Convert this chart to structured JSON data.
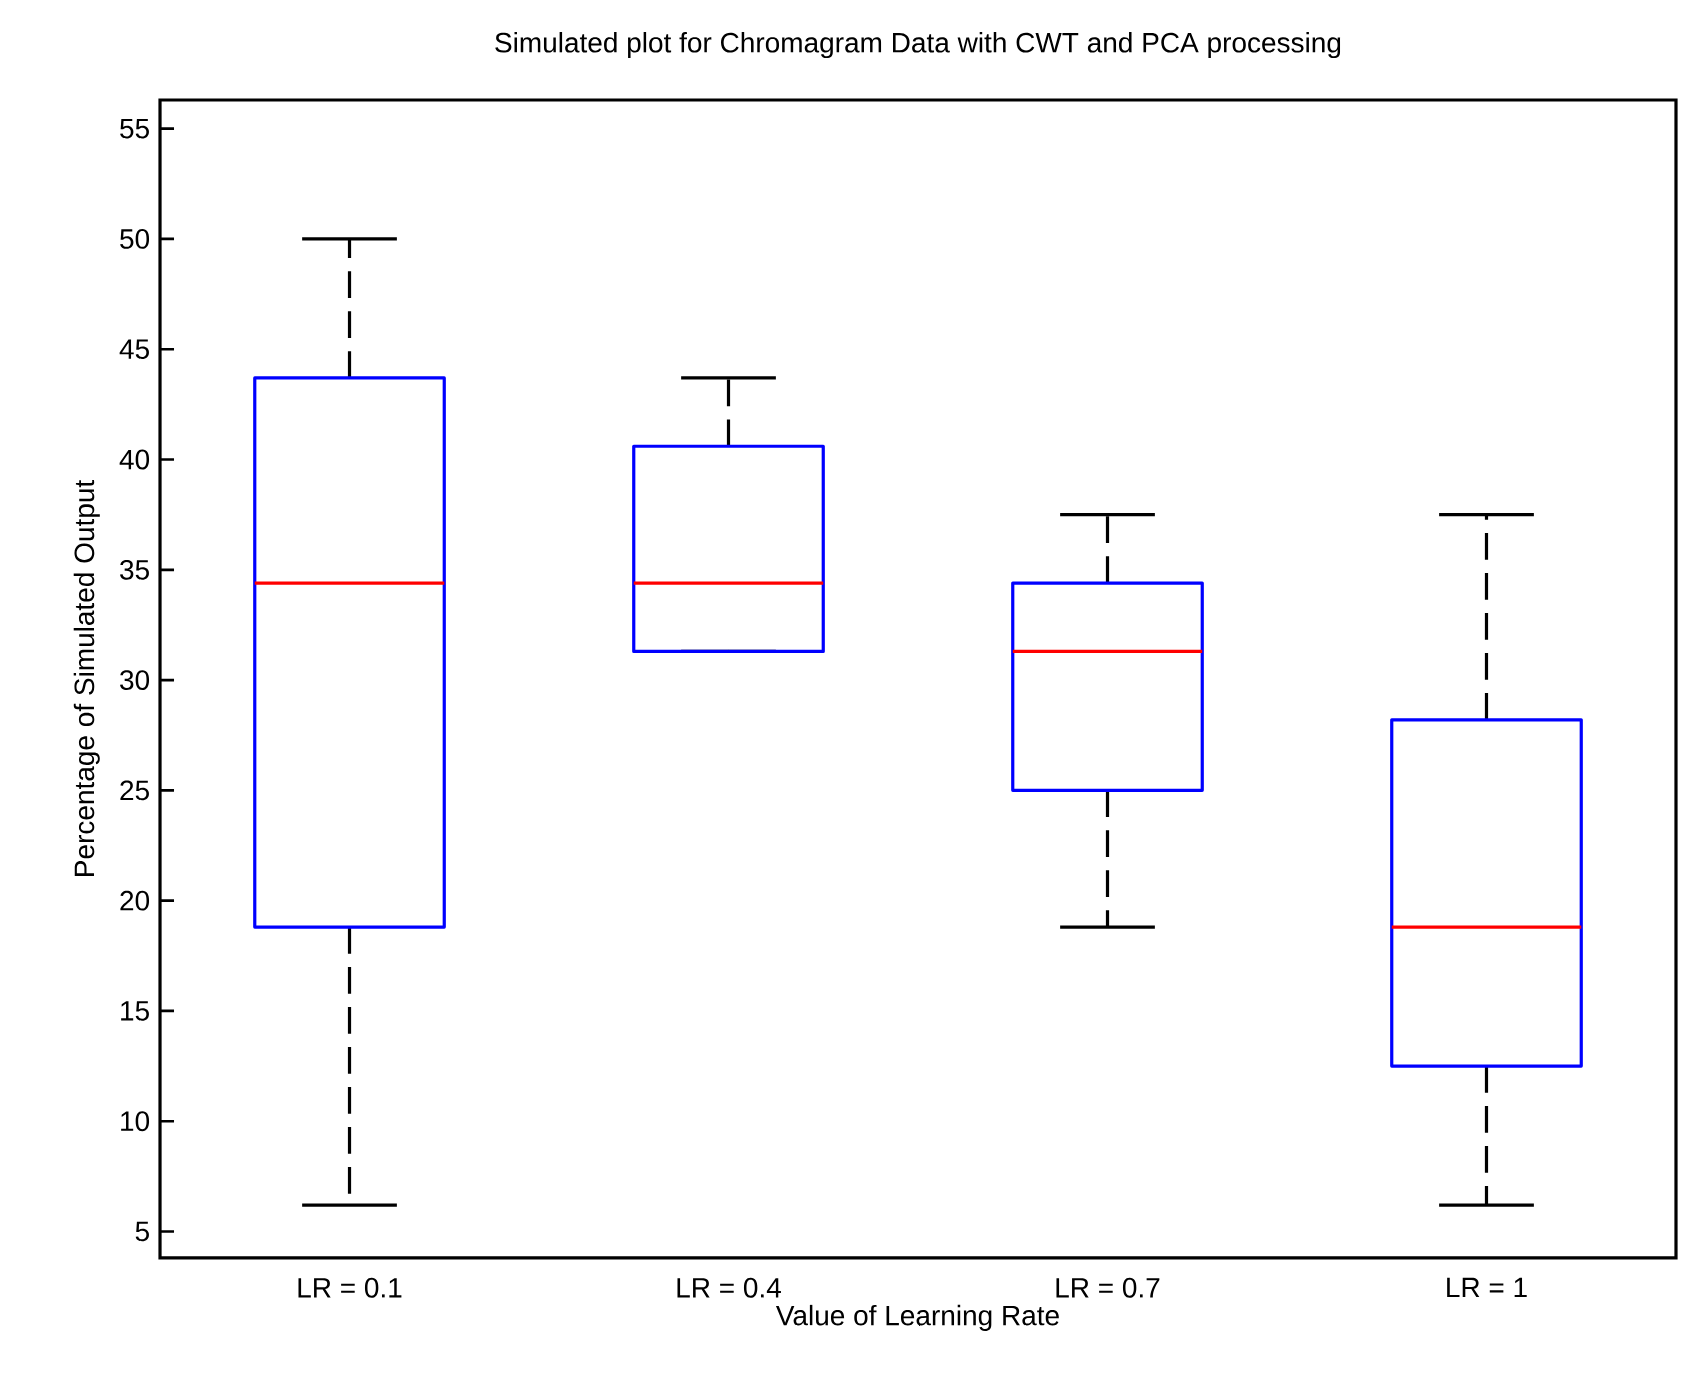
{
  "chart_data": {
    "type": "box",
    "title": "Simulated plot for Chromagram Data with CWT and PCA processing",
    "xlabel": "Value of Learning Rate",
    "ylabel": "Percentage of Simulated Output",
    "categories": [
      "LR = 0.1",
      "LR = 0.4",
      "LR = 0.7",
      "LR = 1"
    ],
    "series": [
      {
        "color": "#0000ff",
        "boxes": [
          {
            "low": 6.2,
            "q1": 18.8,
            "median": 34.4,
            "q3": 43.7,
            "high": 50
          },
          {
            "low": 31.3,
            "q1": 31.3,
            "median": 34.4,
            "q3": 40.6,
            "high": 43.7
          },
          {
            "low": 18.8,
            "q1": 25,
            "median": 31.3,
            "q3": 34.4,
            "high": 37.5
          },
          {
            "low": 6.2,
            "q1": 12.5,
            "median": 18.8,
            "q3": 28.2,
            "high": 37.5
          }
        ]
      }
    ],
    "ylim": [
      3.8,
      56.3
    ],
    "yticks": [
      5,
      10,
      15,
      20,
      25,
      30,
      35,
      40,
      45,
      50,
      55
    ],
    "grid": false
  }
}
